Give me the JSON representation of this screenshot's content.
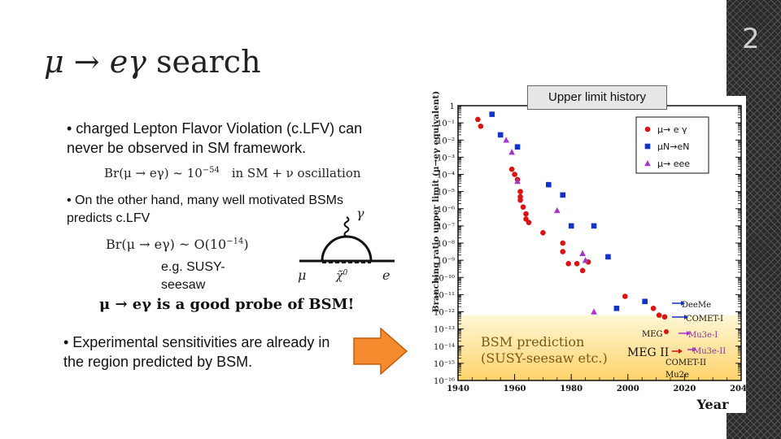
{
  "slide": {
    "number": "2",
    "title_math": "μ → eγ",
    "title_word": "search"
  },
  "bullets": {
    "b1": "• charged Lepton Flavor Violation (c.LFV) can never be observed in SM framework.",
    "f1_left": "Br(μ → eγ) ~ 10",
    "f1_exp": "−54",
    "f1_right": "in SM + ν oscillation",
    "b2": "• On the other hand, many well motivated BSMs predicts c.LFV",
    "f2_left": "Br(μ → eγ) ~ O(10",
    "f2_exp": "−14",
    "f2_right": ")",
    "eg": "e.g. SUSY-seesaw",
    "probe": "μ → eγ is a good probe of BSM!",
    "b3": "• Experimental sensitivities are already in the region predicted by BSM."
  },
  "diagram": {
    "gamma": "γ",
    "mu": "μ",
    "chi": "χ̃",
    "chi_sup": "0",
    "e": "e"
  },
  "history_box": "Upper limit history",
  "chart_data": {
    "type": "scatter",
    "title": "",
    "xlabel": "Year",
    "ylabel": "Branching ratio upper limit (μ→eγ equivalent)",
    "xlim": [
      1940,
      2040
    ],
    "ylim_log10": [
      -16,
      0
    ],
    "xticks": [
      "1940",
      "1960",
      "1980",
      "2000",
      "2020",
      "2040"
    ],
    "yticks": [
      "1",
      "10⁻¹",
      "10⁻²",
      "10⁻³",
      "10⁻⁴",
      "10⁻⁵",
      "10⁻⁶",
      "10⁻⁷",
      "10⁻⁸",
      "10⁻⁹",
      "10⁻¹⁰",
      "10⁻¹¹",
      "10⁻¹²",
      "10⁻¹³",
      "10⁻¹⁴",
      "10⁻¹⁵",
      "10⁻¹⁶"
    ],
    "legend": [
      "μ→ e γ",
      "μN→eN",
      "μ→ eee"
    ],
    "series": [
      {
        "name": "μ→ e γ",
        "color": "#dd1111",
        "marker": "circle",
        "x": [
          1947,
          1948,
          1959,
          1960,
          1961,
          1962,
          1962,
          1962,
          1963,
          1964,
          1964,
          1965,
          1970,
          1977,
          1977,
          1979,
          1982,
          1984,
          1986,
          1999,
          2009,
          2011,
          2013
        ],
        "y": [
          -0.8,
          -1.2,
          -3.7,
          -4.0,
          -4.3,
          -5.0,
          -5.3,
          -5.5,
          -5.9,
          -6.3,
          -6.6,
          -6.8,
          -7.4,
          -8.0,
          -8.5,
          -9.2,
          -9.2,
          -9.6,
          -9.1,
          -11.1,
          -11.8,
          -12.2,
          -12.3
        ]
      },
      {
        "name": "μN→eN",
        "color": "#1133cc",
        "marker": "square",
        "x": [
          1952,
          1955,
          1961,
          1972,
          1977,
          1980,
          1988,
          1993,
          1996,
          2006
        ],
        "y": [
          -0.5,
          -1.7,
          -2.4,
          -4.6,
          -5.2,
          -7.0,
          -7.0,
          -8.8,
          -11.8,
          -11.4
        ]
      },
      {
        "name": "μ→ eee",
        "color": "#aa33cc",
        "marker": "triangle",
        "x": [
          1957,
          1959,
          1961,
          1975,
          1984,
          1985,
          1988
        ],
        "y": [
          -2.0,
          -2.7,
          -4.4,
          -6.1,
          -8.6,
          -9.0,
          -12.0
        ]
      }
    ],
    "annotations": {
      "bsm_1": "BSM prediction",
      "bsm_2": "(SUSY-seesaw etc.)",
      "meg": "MEG",
      "meg2": "MEG II",
      "deeme": "DeeMe",
      "comet1": "COMET-I",
      "mu3e1": "Mu3e-I",
      "mu3e2": "Mu3e-II",
      "comet2": "COMET-II",
      "mu2e": "Mu2e",
      "year": "Year"
    }
  }
}
